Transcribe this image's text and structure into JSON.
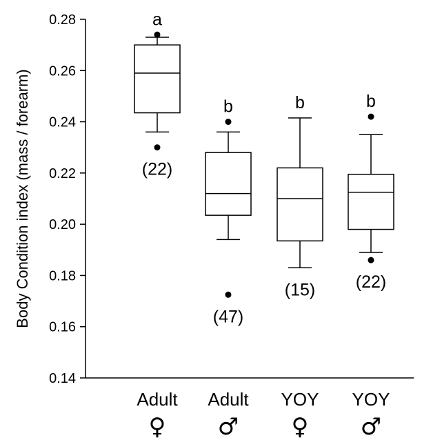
{
  "chart_data": {
    "type": "box",
    "ylabel": "Body Condition index  (mass / forearm)",
    "ylim": [
      0.14,
      0.28
    ],
    "yticks": [
      "0.14",
      "0.16",
      "0.18",
      "0.20",
      "0.22",
      "0.24",
      "0.26",
      "0.28"
    ],
    "yticks_values": [
      0.14,
      0.16,
      0.18,
      0.2,
      0.22,
      0.24,
      0.26,
      0.28
    ],
    "grid": false,
    "groups": [
      {
        "category": "Adult",
        "symbol": "♀",
        "letter": "a",
        "n": "(22)",
        "whisker_low": 0.236,
        "q1": 0.2435,
        "median": 0.259,
        "q3": 0.27,
        "whisker_high": 0.273,
        "outliers": [
          0.274,
          0.23
        ]
      },
      {
        "category": "Adult",
        "symbol": "♂",
        "letter": "b",
        "n": "(47)",
        "whisker_low": 0.194,
        "q1": 0.2035,
        "median": 0.212,
        "q3": 0.228,
        "whisker_high": 0.236,
        "outliers": [
          0.24,
          0.1725
        ]
      },
      {
        "category": "YOY",
        "symbol": "♀",
        "letter": "b",
        "n": "(15)",
        "whisker_low": 0.183,
        "q1": 0.1935,
        "median": 0.21,
        "q3": 0.222,
        "whisker_high": 0.2415,
        "outliers": []
      },
      {
        "category": "YOY",
        "symbol": "♂",
        "letter": "b",
        "n": "(22)",
        "whisker_low": 0.189,
        "q1": 0.198,
        "median": 0.2125,
        "q3": 0.2195,
        "whisker_high": 0.235,
        "outliers": [
          0.242,
          0.186
        ]
      }
    ]
  }
}
